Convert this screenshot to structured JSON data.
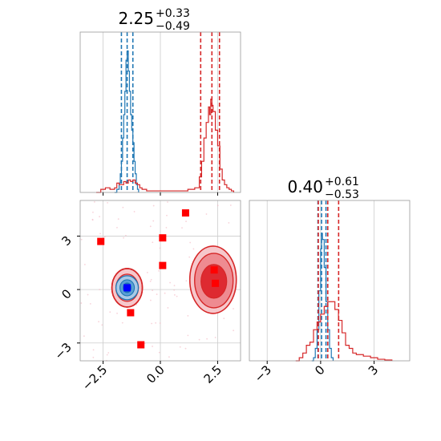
{
  "chart_data": [
    {
      "type": "histogram",
      "panel": "top-left",
      "title": {
        "value": "2.25",
        "plus": "+0.33",
        "minus": "−0.49"
      },
      "xlim": [
        -3.5,
        3.5
      ],
      "grid": true,
      "x_ticks": [
        -2.5,
        0.0,
        2.5
      ],
      "series": [
        {
          "color": "#1f77b4",
          "quantiles": [
            -1.7,
            -1.45,
            -1.2
          ],
          "hist": [
            [
              -2.0,
              0
            ],
            [
              -1.9,
              0.02
            ],
            [
              -1.8,
              0.06
            ],
            [
              -1.75,
              0.12
            ],
            [
              -1.7,
              0.2
            ],
            [
              -1.65,
              0.35
            ],
            [
              -1.6,
              0.5
            ],
            [
              -1.55,
              0.65
            ],
            [
              -1.5,
              0.85
            ],
            [
              -1.45,
              0.91
            ],
            [
              -1.4,
              0.78
            ],
            [
              -1.35,
              0.65
            ],
            [
              -1.3,
              0.5
            ],
            [
              -1.25,
              0.4
            ],
            [
              -1.2,
              0.32
            ],
            [
              -1.15,
              0.2
            ],
            [
              -1.1,
              0.12
            ],
            [
              -1.05,
              0.05
            ],
            [
              -1.0,
              0.02
            ],
            [
              -0.95,
              0
            ]
          ]
        },
        {
          "color": "#d62728",
          "quantiles": [
            1.76,
            2.25,
            2.58
          ],
          "hist": [
            [
              -2.8,
              0
            ],
            [
              -2.6,
              0.02
            ],
            [
              -2.4,
              0.03
            ],
            [
              -2.2,
              0.02
            ],
            [
              -2.0,
              0.03
            ],
            [
              -1.9,
              0.06
            ],
            [
              -1.8,
              0.05
            ],
            [
              -1.6,
              0.07
            ],
            [
              -1.5,
              0.06
            ],
            [
              -1.4,
              0.08
            ],
            [
              -1.3,
              0.07
            ],
            [
              -1.2,
              0.08
            ],
            [
              -1.1,
              0.06
            ],
            [
              -1.0,
              0.05
            ],
            [
              -0.9,
              0.03
            ],
            [
              -0.8,
              0.02
            ],
            [
              -0.6,
              0.01
            ],
            [
              0.0,
              0.01
            ],
            [
              0.6,
              0.01
            ],
            [
              1.2,
              0.02
            ],
            [
              1.5,
              0.03
            ],
            [
              1.7,
              0.1
            ],
            [
              1.8,
              0.2
            ],
            [
              1.9,
              0.35
            ],
            [
              2.0,
              0.45
            ],
            [
              2.1,
              0.55
            ],
            [
              2.15,
              0.5
            ],
            [
              2.2,
              0.6
            ],
            [
              2.25,
              0.56
            ],
            [
              2.3,
              0.52
            ],
            [
              2.4,
              0.4
            ],
            [
              2.5,
              0.3
            ],
            [
              2.6,
              0.15
            ],
            [
              2.7,
              0.08
            ],
            [
              2.8,
              0.05
            ],
            [
              2.9,
              0.03
            ],
            [
              3.0,
              0.02
            ],
            [
              3.1,
              0.01
            ],
            [
              3.2,
              0
            ]
          ]
        }
      ]
    },
    {
      "type": "contour",
      "panel": "bottom-left",
      "xlim": [
        -3.5,
        3.5
      ],
      "ylim": [
        -4,
        5
      ],
      "grid": true,
      "x_ticks": [
        -2.5,
        0.0,
        2.5
      ],
      "y_ticks": [
        3,
        0,
        -3
      ],
      "x_tick_labels": [
        "−2.5",
        "0.0",
        "2.5"
      ],
      "y_tick_labels": [
        "3",
        "0",
        "−3"
      ],
      "blue_cluster": {
        "x": -1.45,
        "y": 0.1
      },
      "red_clusters": [
        {
          "x": -1.45,
          "y": 0.1
        },
        {
          "x": 2.3,
          "y": 0.55
        }
      ],
      "red_markers": [
        [
          -2.6,
          2.7
        ],
        [
          1.1,
          4.3
        ],
        [
          0.1,
          2.9
        ],
        [
          0.1,
          1.35
        ],
        [
          -1.3,
          -1.3
        ],
        [
          -0.85,
          -3.1
        ],
        [
          2.35,
          1.1
        ],
        [
          2.4,
          0.35
        ]
      ],
      "blue_marker": [
        -1.45,
        0.1
      ]
    },
    {
      "type": "histogram",
      "panel": "bottom-right",
      "title": {
        "value": "0.40",
        "plus": "+0.61",
        "minus": "−0.53"
      },
      "xlim": [
        -4,
        5
      ],
      "grid": true,
      "x_ticks": [
        -3,
        0,
        3
      ],
      "x_tick_labels": [
        "−3",
        "0",
        "3"
      ],
      "series": [
        {
          "color": "#1f77b4",
          "quantiles": [
            -0.15,
            0.05,
            0.3
          ],
          "hist": [
            [
              -0.5,
              0
            ],
            [
              -0.4,
              0.02
            ],
            [
              -0.3,
              0.08
            ],
            [
              -0.2,
              0.2
            ],
            [
              -0.1,
              0.45
            ],
            [
              0.0,
              0.72
            ],
            [
              0.05,
              0.82
            ],
            [
              0.1,
              0.78
            ],
            [
              0.2,
              0.6
            ],
            [
              0.3,
              0.38
            ],
            [
              0.4,
              0.2
            ],
            [
              0.5,
              0.08
            ],
            [
              0.6,
              0.02
            ],
            [
              0.7,
              0
            ]
          ]
        },
        {
          "color": "#d62728",
          "quantiles": [
            -0.13,
            0.4,
            1.01
          ],
          "hist": [
            [
              -1.4,
              0
            ],
            [
              -1.2,
              0.02
            ],
            [
              -1.0,
              0.05
            ],
            [
              -0.8,
              0.1
            ],
            [
              -0.6,
              0.12
            ],
            [
              -0.4,
              0.2
            ],
            [
              -0.2,
              0.25
            ],
            [
              0.0,
              0.3
            ],
            [
              0.2,
              0.35
            ],
            [
              0.4,
              0.38
            ],
            [
              0.6,
              0.38
            ],
            [
              0.8,
              0.33
            ],
            [
              1.0,
              0.26
            ],
            [
              1.2,
              0.18
            ],
            [
              1.4,
              0.1
            ],
            [
              1.6,
              0.08
            ],
            [
              1.8,
              0.05
            ],
            [
              2.0,
              0.04
            ],
            [
              2.4,
              0.03
            ],
            [
              2.8,
              0.02
            ],
            [
              3.2,
              0.01
            ],
            [
              3.6,
              0.005
            ],
            [
              4.0,
              0
            ]
          ]
        }
      ]
    }
  ]
}
